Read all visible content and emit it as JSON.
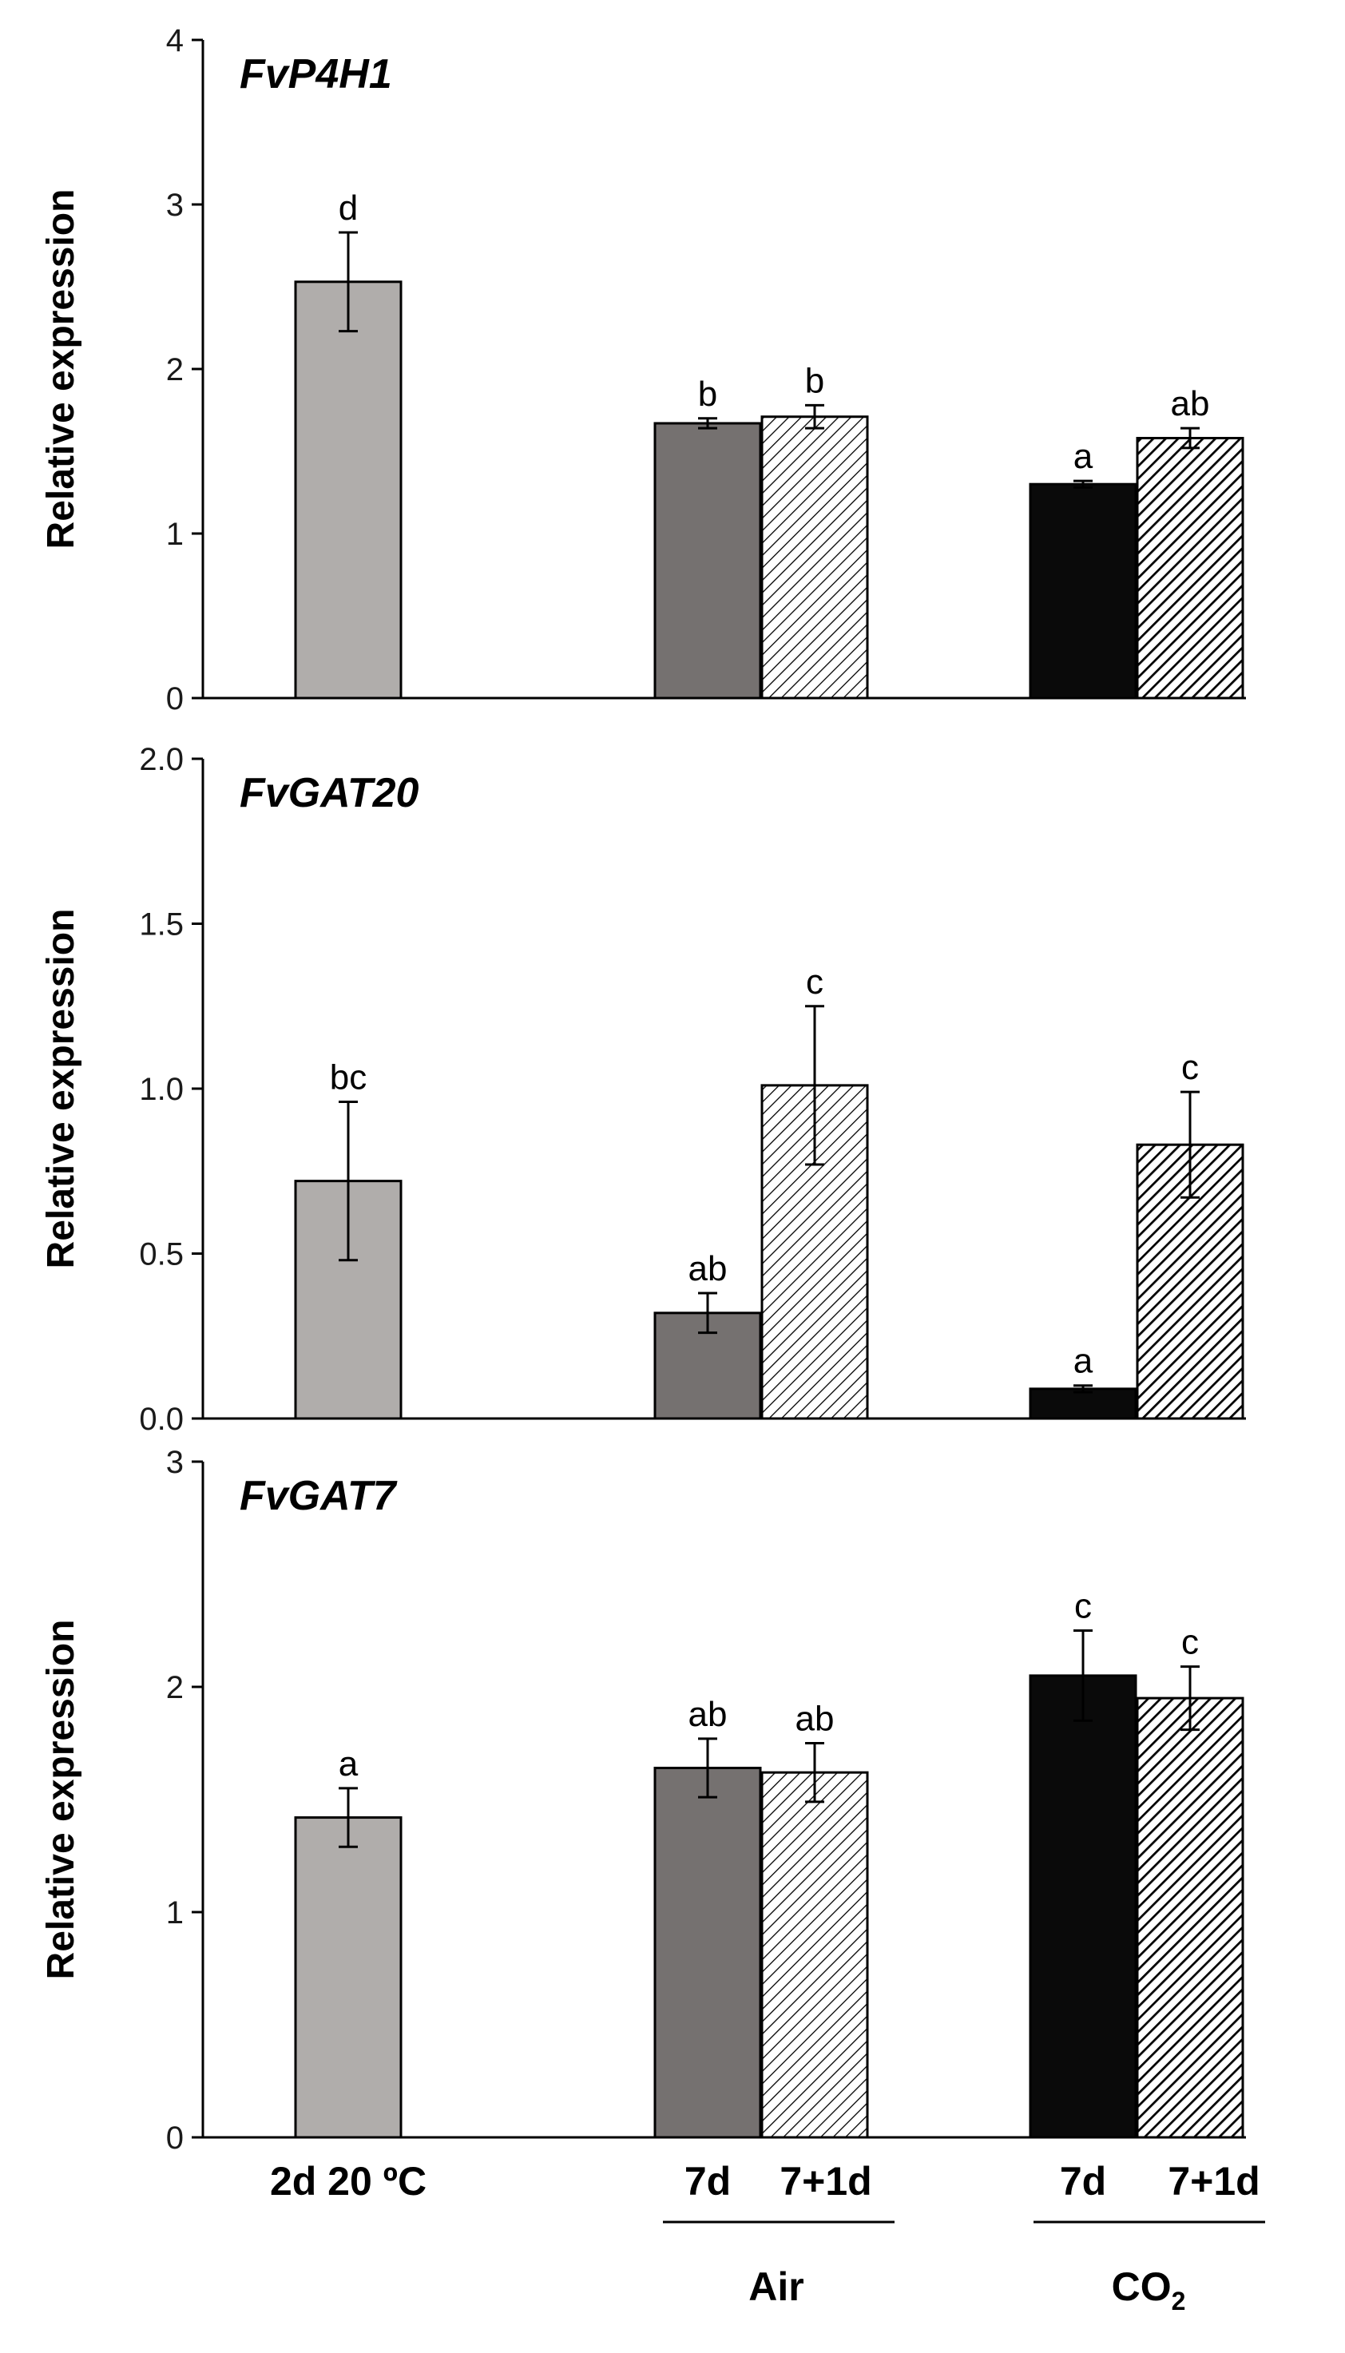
{
  "chart_data": [
    {
      "type": "bar",
      "title": "FvP4H1",
      "ylabel": "Relative expression",
      "ylim": [
        0,
        4
      ],
      "yticks": [
        "0",
        "1",
        "2",
        "3",
        "4"
      ],
      "tick_values": [
        0,
        1,
        2,
        3,
        4
      ],
      "bars": [
        {
          "group": "2d 20 ºC",
          "category": "",
          "value": 2.53,
          "error": 0.3,
          "sig": "d",
          "fill": "light-gray"
        },
        {
          "group": "Air",
          "category": "7d",
          "value": 1.67,
          "error": 0.03,
          "sig": "b",
          "fill": "dark-gray"
        },
        {
          "group": "Air",
          "category": "7+1d",
          "value": 1.71,
          "error": 0.07,
          "sig": "b",
          "fill": "light-hatch"
        },
        {
          "group": "CO2",
          "category": "7d",
          "value": 1.3,
          "error": 0.02,
          "sig": "a",
          "fill": "black"
        },
        {
          "group": "CO2",
          "category": "7+1d",
          "value": 1.58,
          "error": 0.06,
          "sig": "ab",
          "fill": "dark-hatch"
        }
      ]
    },
    {
      "type": "bar",
      "title": "FvGAT20",
      "ylabel": "Relative expression",
      "ylim": [
        0,
        2
      ],
      "yticks": [
        "0.0",
        "0.5",
        "1.0",
        "1.5",
        "2.0"
      ],
      "tick_values": [
        0,
        0.5,
        1.0,
        1.5,
        2.0
      ],
      "bars": [
        {
          "group": "2d 20 ºC",
          "category": "",
          "value": 0.72,
          "error": 0.24,
          "sig": "bc",
          "fill": "light-gray"
        },
        {
          "group": "Air",
          "category": "7d",
          "value": 0.32,
          "error": 0.06,
          "sig": "ab",
          "fill": "dark-gray"
        },
        {
          "group": "Air",
          "category": "7+1d",
          "value": 1.01,
          "error": 0.24,
          "sig": "c",
          "fill": "light-hatch"
        },
        {
          "group": "CO2",
          "category": "7d",
          "value": 0.09,
          "error": 0.01,
          "sig": "a",
          "fill": "black"
        },
        {
          "group": "CO2",
          "category": "7+1d",
          "value": 0.83,
          "error": 0.16,
          "sig": "c",
          "fill": "dark-hatch"
        }
      ]
    },
    {
      "type": "bar",
      "title": "FvGAT7",
      "ylabel": "Relative expression",
      "ylim": [
        0,
        3
      ],
      "yticks": [
        "0",
        "1",
        "2",
        "3"
      ],
      "tick_values": [
        0,
        1,
        2,
        3
      ],
      "bars": [
        {
          "group": "2d 20 ºC",
          "category": "",
          "value": 1.42,
          "error": 0.13,
          "sig": "a",
          "fill": "light-gray"
        },
        {
          "group": "Air",
          "category": "7d",
          "value": 1.64,
          "error": 0.13,
          "sig": "ab",
          "fill": "dark-gray"
        },
        {
          "group": "Air",
          "category": "7+1d",
          "value": 1.62,
          "error": 0.13,
          "sig": "ab",
          "fill": "light-hatch"
        },
        {
          "group": "CO2",
          "category": "7d",
          "value": 2.05,
          "error": 0.2,
          "sig": "c",
          "fill": "black"
        },
        {
          "group": "CO2",
          "category": "7+1d",
          "value": 1.95,
          "error": 0.14,
          "sig": "c",
          "fill": "dark-hatch"
        }
      ]
    }
  ],
  "x_axis": {
    "control_label": "2d 20 ºC",
    "air_7d": "7d",
    "air_7_1d": "7+1d",
    "co2_7d": "7d",
    "co2_7_1d": "7+1d",
    "air_group": "Air",
    "co2_group_base": "CO",
    "co2_group_sub": "2"
  },
  "colors": {
    "light-gray": "#b0adab",
    "dark-gray": "#757170",
    "black": "#0a0a0a",
    "hatch-line": "#000000",
    "axis": "#000000"
  }
}
